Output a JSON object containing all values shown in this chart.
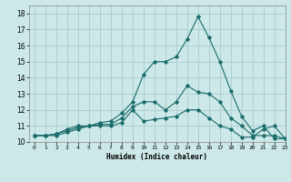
{
  "title": "",
  "xlabel": "Humidex (Indice chaleur)",
  "ylabel": "",
  "xlim": [
    -0.5,
    23
  ],
  "ylim": [
    10,
    18.5
  ],
  "yticks": [
    10,
    11,
    12,
    13,
    14,
    15,
    16,
    17,
    18
  ],
  "xticks": [
    0,
    1,
    2,
    3,
    4,
    5,
    6,
    7,
    8,
    9,
    10,
    11,
    12,
    13,
    14,
    15,
    16,
    17,
    18,
    19,
    20,
    21,
    22,
    23
  ],
  "background_color": "#cce8e8",
  "grid_color": "#aacccc",
  "line_color": "#1a6b6b",
  "series": [
    [
      10.4,
      10.4,
      10.4,
      10.6,
      10.8,
      11.0,
      11.0,
      11.0,
      11.2,
      12.0,
      11.3,
      11.4,
      11.5,
      11.6,
      12.0,
      12.0,
      11.5,
      11.0,
      10.8,
      10.3,
      10.3,
      10.8,
      11.0,
      10.2
    ],
    [
      10.4,
      10.4,
      10.5,
      10.7,
      10.9,
      11.0,
      11.1,
      11.1,
      11.5,
      12.2,
      12.5,
      12.5,
      12.0,
      12.5,
      13.5,
      13.1,
      13.0,
      12.5,
      11.5,
      11.0,
      10.4,
      10.4,
      10.4,
      10.2
    ],
    [
      10.4,
      10.4,
      10.5,
      10.8,
      11.0,
      11.0,
      11.2,
      11.3,
      11.8,
      12.5,
      14.2,
      15.0,
      15.0,
      15.3,
      16.4,
      17.8,
      16.5,
      15.0,
      13.2,
      11.6,
      10.7,
      11.0,
      10.2,
      10.2
    ]
  ]
}
